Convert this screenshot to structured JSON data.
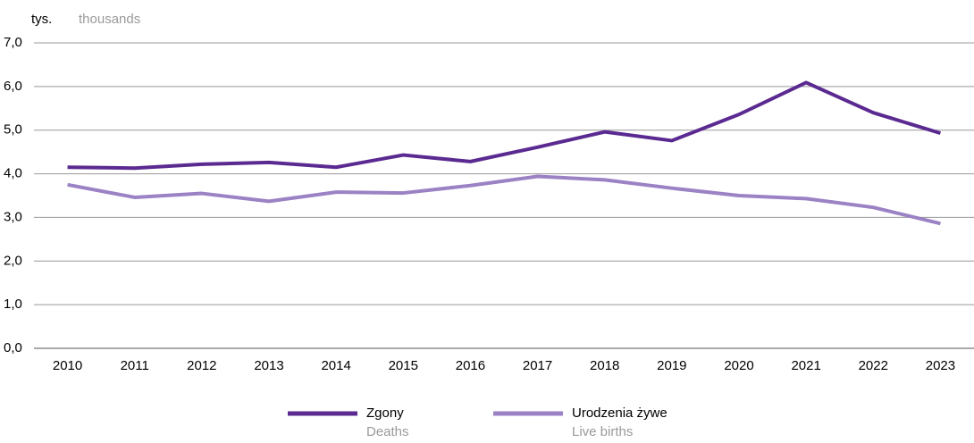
{
  "chart_data": {
    "type": "line",
    "y_label": "tys.",
    "y_label_en": "thousands",
    "categories": [
      "2010",
      "2011",
      "2012",
      "2013",
      "2014",
      "2015",
      "2016",
      "2017",
      "2018",
      "2019",
      "2020",
      "2021",
      "2022",
      "2023"
    ],
    "series": [
      {
        "name": "Zgony",
        "name_en": "Deaths",
        "color": "#5b2a91",
        "values": [
          4.15,
          4.13,
          4.22,
          4.26,
          4.15,
          4.43,
          4.28,
          4.61,
          4.96,
          4.76,
          5.36,
          6.09,
          5.4,
          4.93
        ]
      },
      {
        "name": "Urodzenia żywe",
        "name_en": "Live births",
        "color": "#9b82c4",
        "values": [
          3.75,
          3.46,
          3.55,
          3.37,
          3.58,
          3.56,
          3.73,
          3.94,
          3.86,
          3.67,
          3.5,
          3.43,
          3.23,
          2.86
        ]
      }
    ],
    "ylim": [
      0,
      7
    ],
    "yticks": [
      {
        "value": 0,
        "label": "0,0"
      },
      {
        "value": 1,
        "label": "1,0"
      },
      {
        "value": 2,
        "label": "2,0"
      },
      {
        "value": 3,
        "label": "3,0"
      },
      {
        "value": 4,
        "label": "4,0"
      },
      {
        "value": 5,
        "label": "5,0"
      },
      {
        "value": 6,
        "label": "6,0"
      },
      {
        "value": 7,
        "label": "7,0"
      }
    ],
    "grid": true
  }
}
